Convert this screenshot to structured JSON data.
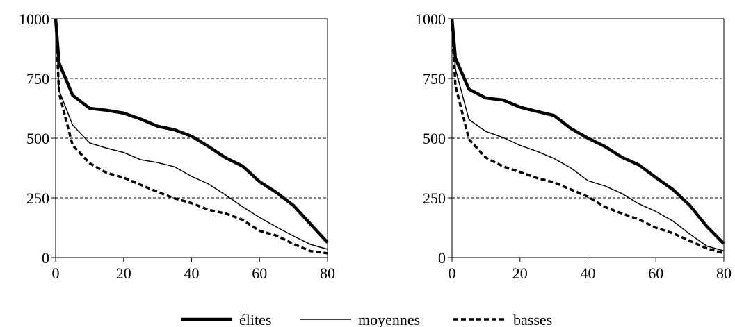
{
  "chart_data": [
    {
      "type": "line",
      "xlim": [
        0,
        80
      ],
      "ylim": [
        0,
        1000
      ],
      "x_ticks": [
        "0",
        "20",
        "40",
        "60",
        "80"
      ],
      "y_ticks": [
        "0",
        "250",
        "500",
        "750",
        "1000"
      ],
      "grid": "horizontal-dashed",
      "series": [
        {
          "name": "élites",
          "x": [
            0,
            1,
            5,
            10,
            15,
            20,
            25,
            30,
            35,
            40,
            45,
            50,
            55,
            60,
            65,
            70,
            75,
            80
          ],
          "y": [
            1000,
            815,
            680,
            625,
            617,
            605,
            580,
            550,
            535,
            508,
            465,
            418,
            383,
            318,
            272,
            218,
            140,
            63
          ]
        },
        {
          "name": "moyennes",
          "x": [
            0,
            1,
            5,
            10,
            15,
            20,
            25,
            30,
            35,
            40,
            45,
            50,
            55,
            60,
            65,
            70,
            75,
            80
          ],
          "y": [
            1000,
            700,
            555,
            480,
            458,
            440,
            410,
            398,
            380,
            340,
            308,
            262,
            213,
            168,
            128,
            90,
            55,
            35
          ]
        },
        {
          "name": "basses",
          "x": [
            0,
            1,
            5,
            10,
            15,
            20,
            25,
            30,
            35,
            40,
            45,
            50,
            55,
            60,
            65,
            70,
            75,
            80
          ],
          "y": [
            1000,
            690,
            470,
            395,
            355,
            335,
            305,
            275,
            248,
            228,
            200,
            185,
            158,
            112,
            92,
            57,
            27,
            18
          ]
        }
      ]
    },
    {
      "type": "line",
      "xlim": [
        0,
        80
      ],
      "ylim": [
        0,
        1000
      ],
      "x_ticks": [
        "0",
        "20",
        "40",
        "60",
        "80"
      ],
      "y_ticks": [
        "0",
        "250",
        "500",
        "750",
        "1000"
      ],
      "grid": "horizontal-dashed",
      "series": [
        {
          "name": "élites",
          "x": [
            0,
            1,
            5,
            10,
            15,
            20,
            25,
            30,
            35,
            40,
            45,
            50,
            55,
            60,
            65,
            70,
            75,
            80
          ],
          "y": [
            1000,
            835,
            705,
            668,
            660,
            630,
            612,
            595,
            540,
            500,
            465,
            420,
            388,
            335,
            285,
            218,
            130,
            58
          ]
        },
        {
          "name": "moyennes",
          "x": [
            0,
            1,
            5,
            10,
            15,
            20,
            25,
            30,
            35,
            40,
            45,
            50,
            55,
            60,
            65,
            70,
            75,
            80
          ],
          "y": [
            1000,
            790,
            578,
            528,
            503,
            470,
            445,
            415,
            375,
            322,
            300,
            268,
            225,
            193,
            153,
            98,
            48,
            28
          ]
        },
        {
          "name": "basses",
          "x": [
            0,
            1,
            5,
            10,
            15,
            20,
            25,
            30,
            35,
            40,
            45,
            50,
            55,
            60,
            65,
            70,
            75,
            80
          ],
          "y": [
            1000,
            720,
            495,
            418,
            382,
            358,
            333,
            315,
            285,
            255,
            212,
            185,
            160,
            125,
            102,
            70,
            38,
            18
          ]
        }
      ]
    }
  ],
  "legend": [
    {
      "label": "élites",
      "style": "thick-solid"
    },
    {
      "label": "moyennes",
      "style": "thin-solid"
    },
    {
      "label": "basses",
      "style": "dashed"
    }
  ]
}
